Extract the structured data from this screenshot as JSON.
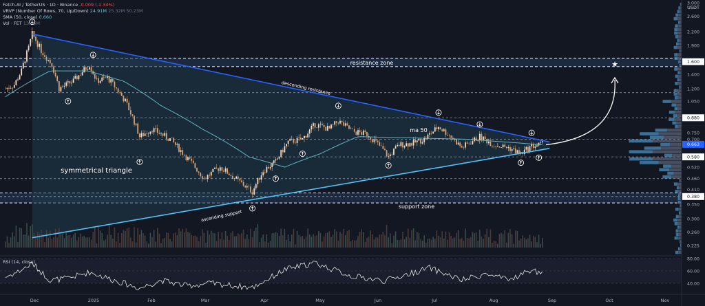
{
  "header": {
    "line1": {
      "symbol": "Fetch.AI / TetherUS · 1D · Binance",
      "change": "-0.009 (-1.34%)"
    },
    "line2": {
      "label": "VRVP (Number Of Rows, 70, Up/Down)",
      "v1": "24.91M",
      "v2": "25.32M",
      "v3": "50.23M"
    },
    "line3": {
      "label": "SMA (50, close)",
      "value": "0.660"
    },
    "line4": {
      "label": "Vol · FET",
      "value": "13.15M"
    }
  },
  "currency": "USDT",
  "rsi_label": "RSI (14, close)",
  "colors": {
    "up": "#26a69a",
    "down": "#ef5350",
    "candle_body": "#d8a373",
    "bg": "#131722",
    "triangle": "#1f3b4d",
    "support": "#4fc3f7",
    "resistance": "#2962ff",
    "sma": "#6bc3cf",
    "vrvp": "#4b8fbf"
  },
  "chart_data": {
    "type": "candlestick",
    "title": "",
    "yscale": "log",
    "price_axis_ticks": [
      "3.000",
      "2.600",
      "2.200",
      "1.900",
      "1.600",
      "1.400",
      "1.200",
      "1.050",
      "0.880",
      "0.750",
      "0.700",
      "0.663",
      "0.580",
      "0.520",
      "0.460",
      "0.410",
      "0.380",
      "0.350",
      "0.300",
      "0.260",
      "0.225"
    ],
    "price_axis_ticks_values": [
      3.0,
      2.6,
      2.2,
      1.9,
      1.6,
      1.4,
      1.2,
      1.05,
      0.88,
      0.75,
      0.7,
      0.663,
      0.58,
      0.52,
      0.46,
      0.41,
      0.38,
      0.35,
      0.3,
      0.26,
      0.225
    ],
    "highlighted_prices": [
      "1.600",
      "1.150",
      "0.880",
      "0.663",
      "0.580",
      "0.380"
    ],
    "time_axis_labels": [
      "Dec",
      "2025",
      "Feb",
      "Mar",
      "Apr",
      "May",
      "Jun",
      "Jul",
      "Aug",
      "Sep",
      "Oct",
      "Nov"
    ],
    "price_anchors": [
      {
        "x": "2024-11-20",
        "close": 1.2
      },
      {
        "x": "2024-11-25",
        "close": 1.25
      },
      {
        "x": "2024-11-29",
        "close": 1.45
      },
      {
        "x": "2024-12-03",
        "close": 1.85
      },
      {
        "x": "2024-12-05",
        "close": 2.15
      },
      {
        "x": "2024-12-10",
        "close": 1.8
      },
      {
        "x": "2024-12-16",
        "close": 1.55
      },
      {
        "x": "2024-12-20",
        "close": 1.2
      },
      {
        "x": "2024-12-28",
        "close": 1.3
      },
      {
        "x": "2025-01-06",
        "close": 1.55
      },
      {
        "x": "2025-01-10",
        "close": 1.3
      },
      {
        "x": "2025-01-16",
        "close": 1.35
      },
      {
        "x": "2025-01-26",
        "close": 1.05
      },
      {
        "x": "2025-02-03",
        "close": 0.72
      },
      {
        "x": "2025-02-10",
        "close": 0.78
      },
      {
        "x": "2025-02-20",
        "close": 0.7
      },
      {
        "x": "2025-03-01",
        "close": 0.58
      },
      {
        "x": "2025-03-11",
        "close": 0.46
      },
      {
        "x": "2025-03-20",
        "close": 0.52
      },
      {
        "x": "2025-03-30",
        "close": 0.45
      },
      {
        "x": "2025-04-07",
        "close": 0.4
      },
      {
        "x": "2025-04-13",
        "close": 0.5
      },
      {
        "x": "2025-04-20",
        "close": 0.55
      },
      {
        "x": "2025-04-27",
        "close": 0.68
      },
      {
        "x": "2025-05-05",
        "close": 0.7
      },
      {
        "x": "2025-05-12",
        "close": 0.82
      },
      {
        "x": "2025-05-20",
        "close": 0.78
      },
      {
        "x": "2025-05-25",
        "close": 0.85
      },
      {
        "x": "2025-06-02",
        "close": 0.76
      },
      {
        "x": "2025-06-10",
        "close": 0.74
      },
      {
        "x": "2025-06-18",
        "close": 0.64
      },
      {
        "x": "2025-06-22",
        "close": 0.58
      },
      {
        "x": "2025-06-28",
        "close": 0.66
      },
      {
        "x": "2025-07-05",
        "close": 0.67
      },
      {
        "x": "2025-07-12",
        "close": 0.7
      },
      {
        "x": "2025-07-20",
        "close": 0.8
      },
      {
        "x": "2025-07-26",
        "close": 0.73
      },
      {
        "x": "2025-08-02",
        "close": 0.64
      },
      {
        "x": "2025-08-12",
        "close": 0.72
      },
      {
        "x": "2025-08-20",
        "close": 0.66
      },
      {
        "x": "2025-08-28",
        "close": 0.64
      },
      {
        "x": "2025-09-04",
        "close": 0.6
      },
      {
        "x": "2025-09-10",
        "close": 0.65
      },
      {
        "x": "2025-09-16",
        "close": 0.663
      }
    ],
    "sma50_anchors": [
      {
        "x": "2024-11-20",
        "y": 1.1
      },
      {
        "x": "2024-12-15",
        "y": 1.45
      },
      {
        "x": "2025-01-05",
        "y": 1.45
      },
      {
        "x": "2025-01-25",
        "y": 1.3
      },
      {
        "x": "2025-02-15",
        "y": 1.0
      },
      {
        "x": "2025-03-10",
        "y": 0.78
      },
      {
        "x": "2025-04-05",
        "y": 0.58
      },
      {
        "x": "2025-04-25",
        "y": 0.52
      },
      {
        "x": "2025-05-15",
        "y": 0.6
      },
      {
        "x": "2025-06-05",
        "y": 0.72
      },
      {
        "x": "2025-07-05",
        "y": 0.71
      },
      {
        "x": "2025-08-05",
        "y": 0.7
      },
      {
        "x": "2025-09-16",
        "y": 0.66
      }
    ],
    "rsi_axis_ticks": [
      "80.00",
      "60.00",
      "40.00"
    ],
    "rsi_axis_values": [
      80,
      60,
      40
    ],
    "rsi_anchors": [
      {
        "x": "2024-11-20",
        "y": 50
      },
      {
        "x": "2024-11-28",
        "y": 60
      },
      {
        "x": "2024-12-05",
        "y": 72
      },
      {
        "x": "2024-12-15",
        "y": 45
      },
      {
        "x": "2024-12-25",
        "y": 48
      },
      {
        "x": "2025-01-06",
        "y": 58
      },
      {
        "x": "2025-01-20",
        "y": 45
      },
      {
        "x": "2025-02-03",
        "y": 32
      },
      {
        "x": "2025-02-15",
        "y": 45
      },
      {
        "x": "2025-03-01",
        "y": 36
      },
      {
        "x": "2025-03-15",
        "y": 40
      },
      {
        "x": "2025-04-07",
        "y": 33
      },
      {
        "x": "2025-04-25",
        "y": 62
      },
      {
        "x": "2025-05-12",
        "y": 73
      },
      {
        "x": "2025-06-01",
        "y": 52
      },
      {
        "x": "2025-06-20",
        "y": 44
      },
      {
        "x": "2025-07-15",
        "y": 65
      },
      {
        "x": "2025-08-02",
        "y": 45
      },
      {
        "x": "2025-08-15",
        "y": 55
      },
      {
        "x": "2025-08-28",
        "y": 45
      },
      {
        "x": "2025-09-10",
        "y": 62
      },
      {
        "x": "2025-09-16",
        "y": 55
      }
    ],
    "annotations": [
      "resistance zone",
      "descending resistance",
      "ma 50",
      "symmetrical triangle",
      "ascending support",
      "support zone"
    ],
    "lines": {
      "descending_resistance": [
        {
          "x": "2024-12-05",
          "y": 2.15
        },
        {
          "x": "2025-09-20",
          "y": 0.68
        }
      ],
      "ascending_support": [
        {
          "x": "2024-12-05",
          "y": 0.245
        },
        {
          "x": "2025-09-20",
          "y": 0.635
        }
      ],
      "resistance_zone": [
        1.52,
        1.66
      ],
      "support_zone": [
        0.355,
        0.395
      ],
      "horizontal_levels": [
        1.15,
        0.88,
        0.7,
        0.58,
        0.46,
        0.38
      ]
    }
  }
}
